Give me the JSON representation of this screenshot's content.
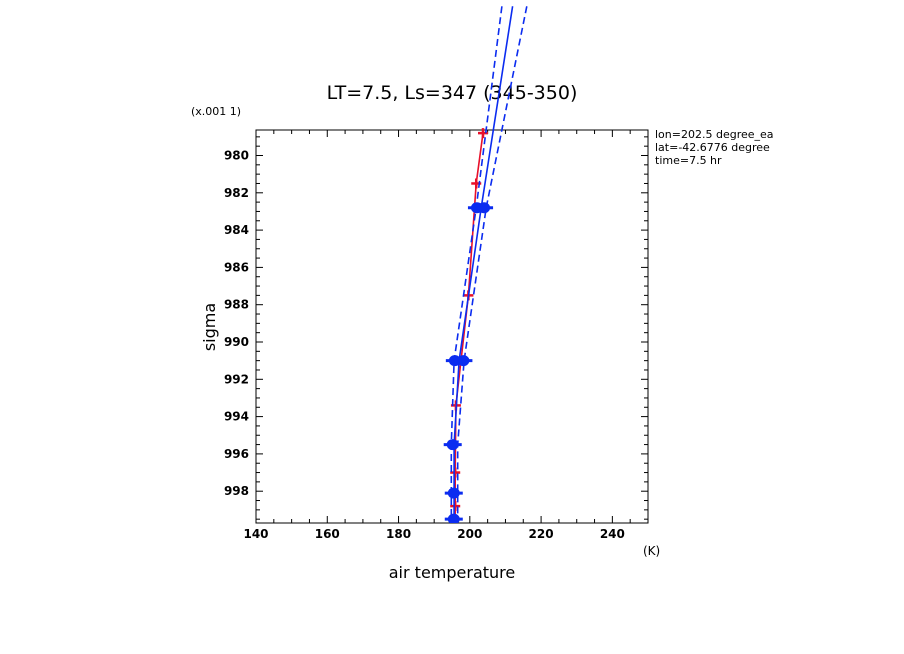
{
  "chart_data": {
    "type": "line",
    "title": "LT=7.5, Ls=347 (345-350)",
    "xlabel": "air temperature",
    "ylabel": "sigma",
    "x_unit": "(K)",
    "y_scale_note": "(x.001 1)",
    "xlim": [
      140,
      250
    ],
    "ylim": [
      999.8,
      978.7
    ],
    "x_ticks": [
      140,
      160,
      180,
      200,
      220,
      240
    ],
    "x_tick_labels": [
      "140",
      "160",
      "180",
      "200",
      "220",
      "240"
    ],
    "y_ticks": [
      980,
      982,
      984,
      986,
      988,
      990,
      992,
      994,
      996,
      998
    ],
    "y_tick_labels": [
      "980",
      "982",
      "984",
      "986",
      "988",
      "990",
      "992",
      "994",
      "996",
      "998"
    ],
    "annotations": [
      "lon=202.5 degree_ea",
      "lat=-42.6776 degree",
      "time=7.5 hr"
    ],
    "grid": false,
    "series": [
      {
        "color": "#e8102a",
        "style": "solid-with-cross-markers",
        "points": [
          {
            "x": 203.7,
            "y": 978.8
          },
          {
            "x": 201.8,
            "y": 981.5
          },
          {
            "x": 199.6,
            "y": 987.5
          },
          {
            "x": 196.1,
            "y": 993.4
          },
          {
            "x": 195.9,
            "y": 997.0
          },
          {
            "x": 195.9,
            "y": 998.8
          },
          {
            "x": 195.9,
            "y": 999.8
          }
        ]
      },
      {
        "color": "#0b2cf0",
        "style": "solid",
        "points": [
          {
            "x": 212.0,
            "y": 972.0
          },
          {
            "x": 203.2,
            "y": 982.8
          },
          {
            "x": 197.0,
            "y": 991.0
          },
          {
            "x": 195.6,
            "y": 995.5
          },
          {
            "x": 195.6,
            "y": 998.1
          },
          {
            "x": 195.6,
            "y": 999.5
          }
        ]
      },
      {
        "color": "#0b2cf0",
        "style": "dashed",
        "points": [
          {
            "x": 209.0,
            "y": 972.0
          },
          {
            "x": 201.8,
            "y": 982.8
          },
          {
            "x": 195.6,
            "y": 991.0
          },
          {
            "x": 194.8,
            "y": 995.5
          },
          {
            "x": 194.8,
            "y": 998.1
          },
          {
            "x": 194.8,
            "y": 999.5
          }
        ]
      },
      {
        "color": "#0b2cf0",
        "style": "dashed",
        "points": [
          {
            "x": 216.0,
            "y": 972.0
          },
          {
            "x": 204.6,
            "y": 982.8
          },
          {
            "x": 198.4,
            "y": 991.0
          },
          {
            "x": 196.6,
            "y": 995.5
          },
          {
            "x": 196.6,
            "y": 998.1
          },
          {
            "x": 196.6,
            "y": 999.5
          }
        ]
      },
      {
        "color": "#0b2cf0",
        "style": "markers",
        "points": [
          {
            "x": 202.0,
            "y": 982.8
          },
          {
            "x": 204.0,
            "y": 982.8
          },
          {
            "x": 195.8,
            "y": 991.0
          },
          {
            "x": 198.2,
            "y": 991.0
          },
          {
            "x": 195.2,
            "y": 995.5
          },
          {
            "x": 195.5,
            "y": 998.1
          },
          {
            "x": 195.5,
            "y": 999.5
          }
        ]
      }
    ]
  }
}
